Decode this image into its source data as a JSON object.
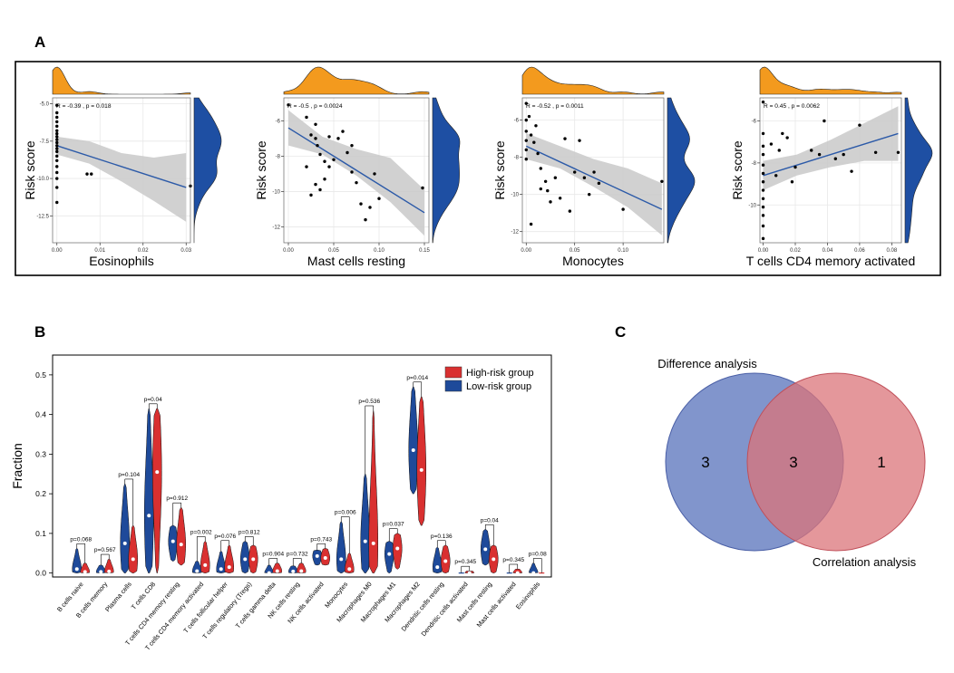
{
  "panels": {
    "A": {
      "label": "A"
    },
    "B": {
      "label": "B"
    },
    "C": {
      "label": "C"
    }
  },
  "colors": {
    "orange": "#F39A1E",
    "blue_density": "#1E4FA3",
    "fit_line": "#2C5AA8",
    "ci_band": "#C9C9C9",
    "high_risk": "#D93030",
    "low_risk": "#1E4A9A",
    "venn_left": "#6B83C3",
    "venn_right": "#DB7479",
    "venn_overlap": "#A64E6E"
  },
  "chart_data": [
    {
      "type": "scatter",
      "title": "",
      "xlabel": "Eosinophils",
      "ylabel": "Risk score",
      "annotation": "R = -0.39 , p = 0.018",
      "xlim": [
        -0.001,
        0.031
      ],
      "ylim": [
        -14.3,
        -4.6
      ],
      "xticks": [
        0.0,
        0.01,
        0.02,
        0.03
      ],
      "xtick_labels": [
        "0.00",
        "0.01",
        "0.02",
        "0.03"
      ],
      "yticks": [
        -5.0,
        -7.5,
        -10.0,
        -12.5
      ],
      "ytick_labels": [
        "-5.0",
        "-7.5",
        "-10.0",
        "-12.5"
      ],
      "fit": {
        "x": [
          0,
          0.03
        ],
        "y": [
          -7.8,
          -10.6
        ]
      },
      "ci": {
        "x": [
          0,
          0.0075,
          0.015,
          0.0225,
          0.03
        ],
        "lower": [
          -8.4,
          -9.0,
          -10.2,
          -11.5,
          -12.9
        ],
        "upper": [
          -7.2,
          -7.5,
          -8.3,
          -8.6,
          -8.3
        ]
      },
      "points": [
        [
          0,
          -5.1
        ],
        [
          0,
          -5.6
        ],
        [
          0,
          -5.9
        ],
        [
          0,
          -6.2
        ],
        [
          0,
          -6.5
        ],
        [
          0,
          -6.8
        ],
        [
          0,
          -7.0
        ],
        [
          0,
          -7.2
        ],
        [
          0,
          -7.4
        ],
        [
          0,
          -7.6
        ],
        [
          0,
          -7.8
        ],
        [
          0,
          -8.0
        ],
        [
          0,
          -8.2
        ],
        [
          0,
          -8.5
        ],
        [
          0,
          -8.8
        ],
        [
          0,
          -9.2
        ],
        [
          0,
          -9.6
        ],
        [
          0,
          -10.0
        ],
        [
          0,
          -10.6
        ],
        [
          0,
          -11.6
        ],
        [
          0.007,
          -9.7
        ],
        [
          0.008,
          -9.7
        ],
        [
          0.031,
          -10.5
        ]
      ]
    },
    {
      "type": "scatter",
      "title": "",
      "xlabel": "Mast cells resting",
      "ylabel": "Risk score",
      "annotation": "R = -0.5 , p = 0.0024",
      "xlim": [
        -0.005,
        0.155
      ],
      "ylim": [
        -12.9,
        -4.7
      ],
      "xticks": [
        0.0,
        0.05,
        0.1,
        0.15
      ],
      "xtick_labels": [
        "0.00",
        "0.05",
        "0.10",
        "0.15"
      ],
      "yticks": [
        -6,
        -8,
        -10,
        -12
      ],
      "ytick_labels": [
        "-6",
        "-8",
        "-10",
        "-12"
      ],
      "fit": {
        "x": [
          0,
          0.15
        ],
        "y": [
          -6.4,
          -11.2
        ]
      },
      "ci": {
        "x": [
          0,
          0.0375,
          0.075,
          0.1125,
          0.15
        ],
        "lower": [
          -7.4,
          -7.9,
          -9.1,
          -10.6,
          -12.5
        ],
        "upper": [
          -5.4,
          -6.9,
          -7.6,
          -8.1,
          -9.9
        ]
      },
      "points": [
        [
          0.0,
          -5.1
        ],
        [
          0.02,
          -5.8
        ],
        [
          0.025,
          -6.8
        ],
        [
          0.03,
          -6.2
        ],
        [
          0.03,
          -7.0
        ],
        [
          0.032,
          -7.4
        ],
        [
          0.035,
          -7.9
        ],
        [
          0.04,
          -8.3
        ],
        [
          0.045,
          -8.6
        ],
        [
          0.05,
          -8.2
        ],
        [
          0.055,
          -7.0
        ],
        [
          0.06,
          -6.6
        ],
        [
          0.065,
          -7.8
        ],
        [
          0.07,
          -8.9
        ],
        [
          0.075,
          -9.5
        ],
        [
          0.08,
          -10.7
        ],
        [
          0.085,
          -11.6
        ],
        [
          0.09,
          -10.9
        ],
        [
          0.095,
          -9.0
        ],
        [
          0.03,
          -9.6
        ],
        [
          0.025,
          -10.2
        ],
        [
          0.04,
          -9.3
        ],
        [
          0.02,
          -8.6
        ],
        [
          0.035,
          -9.9
        ],
        [
          0.045,
          -6.9
        ],
        [
          0.1,
          -10.4
        ],
        [
          0.148,
          -9.8
        ],
        [
          0.07,
          -7.4
        ]
      ]
    },
    {
      "type": "scatter",
      "title": "",
      "xlabel": "Monocytes",
      "ylabel": "Risk score",
      "annotation": "R = -0.52 , p = 0.0011",
      "xlim": [
        -0.004,
        0.142
      ],
      "ylim": [
        -12.6,
        -4.8
      ],
      "xticks": [
        0.0,
        0.05,
        0.1
      ],
      "xtick_labels": [
        "0.00",
        "0.05",
        "0.10"
      ],
      "yticks": [
        -6,
        -8,
        -10,
        -12
      ],
      "ytick_labels": [
        "-6",
        "-8",
        "-10",
        "-12"
      ],
      "fit": {
        "x": [
          0,
          0.14
        ],
        "y": [
          -7.4,
          -10.8
        ]
      },
      "ci": {
        "x": [
          0,
          0.035,
          0.07,
          0.105,
          0.14
        ],
        "lower": [
          -8.1,
          -8.6,
          -9.6,
          -10.7,
          -12.2
        ],
        "upper": [
          -6.7,
          -7.4,
          -8.1,
          -8.6,
          -9.4
        ]
      },
      "points": [
        [
          0,
          -5.1
        ],
        [
          0,
          -6.0
        ],
        [
          0,
          -6.6
        ],
        [
          0,
          -7.1
        ],
        [
          0,
          -7.6
        ],
        [
          0,
          -8.1
        ],
        [
          0.003,
          -5.8
        ],
        [
          0.005,
          -6.8
        ],
        [
          0.008,
          -7.2
        ],
        [
          0.01,
          -6.3
        ],
        [
          0.012,
          -7.8
        ],
        [
          0.015,
          -8.6
        ],
        [
          0.02,
          -9.3
        ],
        [
          0.022,
          -9.8
        ],
        [
          0.025,
          -10.4
        ],
        [
          0.03,
          -9.1
        ],
        [
          0.035,
          -10.2
        ],
        [
          0.04,
          -7.0
        ],
        [
          0.05,
          -8.8
        ],
        [
          0.055,
          -7.1
        ],
        [
          0.06,
          -9.1
        ],
        [
          0.065,
          -10.0
        ],
        [
          0.07,
          -8.8
        ],
        [
          0.075,
          -9.4
        ],
        [
          0.1,
          -10.8
        ],
        [
          0.14,
          -9.3
        ],
        [
          0.005,
          -11.6
        ],
        [
          0.015,
          -9.7
        ],
        [
          0.045,
          -10.9
        ]
      ]
    },
    {
      "type": "scatter",
      "title": "",
      "xlabel": "T cells CD4 memory activated",
      "ylabel": "Risk score",
      "annotation": "R = 0.45 , p = 0.0062",
      "xlim": [
        -0.002,
        0.086
      ],
      "ylim": [
        -11.8,
        -4.9
      ],
      "xticks": [
        0.0,
        0.02,
        0.04,
        0.06,
        0.08
      ],
      "xtick_labels": [
        "0.00",
        "0.02",
        "0.04",
        "0.06",
        "0.08"
      ],
      "yticks": [
        -6,
        -8,
        -10
      ],
      "ytick_labels": [
        "-6",
        "-8",
        "-10"
      ],
      "fit": {
        "x": [
          0,
          0.084
        ],
        "y": [
          -8.6,
          -6.6
        ]
      },
      "ci": {
        "x": [
          0,
          0.021,
          0.042,
          0.063,
          0.084
        ],
        "lower": [
          -9.3,
          -8.6,
          -8.2,
          -7.9,
          -7.9
        ],
        "upper": [
          -7.9,
          -7.6,
          -6.9,
          -6.1,
          -5.3
        ]
      },
      "points": [
        [
          0,
          -5.1
        ],
        [
          0,
          -6.6
        ],
        [
          0,
          -7.2
        ],
        [
          0,
          -7.6
        ],
        [
          0,
          -8.1
        ],
        [
          0,
          -8.5
        ],
        [
          0,
          -8.9
        ],
        [
          0,
          -9.3
        ],
        [
          0,
          -9.7
        ],
        [
          0,
          -10.1
        ],
        [
          0,
          -10.5
        ],
        [
          0,
          -11.0
        ],
        [
          0,
          -11.6
        ],
        [
          0.005,
          -7.1
        ],
        [
          0.008,
          -8.6
        ],
        [
          0.01,
          -7.4
        ],
        [
          0.012,
          -6.6
        ],
        [
          0.015,
          -6.8
        ],
        [
          0.018,
          -8.9
        ],
        [
          0.02,
          -8.2
        ],
        [
          0.03,
          -7.4
        ],
        [
          0.035,
          -7.6
        ],
        [
          0.038,
          -6.0
        ],
        [
          0.045,
          -7.8
        ],
        [
          0.05,
          -7.6
        ],
        [
          0.055,
          -8.4
        ],
        [
          0.06,
          -6.2
        ],
        [
          0.07,
          -7.5
        ],
        [
          0.084,
          -7.5
        ]
      ]
    },
    {
      "type": "violin",
      "title": "",
      "xlabel": "",
      "ylabel": "Fraction",
      "ylim": [
        -0.01,
        0.55
      ],
      "yticks": [
        0.0,
        0.1,
        0.2,
        0.3,
        0.4,
        0.5
      ],
      "ytick_labels": [
        "0.0",
        "0.1",
        "0.2",
        "0.3",
        "0.4",
        "0.5"
      ],
      "legend": {
        "position": "top-right",
        "entries": [
          "High-risk group",
          "Low-risk group"
        ]
      },
      "categories": [
        "B cells naive",
        "B cells memory",
        "Plasma cells",
        "T cells CD8",
        "T cells CD4 memory resting",
        "T cells CD4 memory activated",
        "T cells follicular helper",
        "T cells regulatory (Tregs)",
        "T cells gamma delta",
        "NK cells resting",
        "NK cells activated",
        "Monocytes",
        "Macrophages M0",
        "Macrophages M1",
        "Macrophages M2",
        "Dendritic cells resting",
        "Dendritic cells activated",
        "Mast cells resting",
        "Mast cells activated",
        "Eosinophils"
      ],
      "pvalues": [
        "p=0.068",
        "p=0.567",
        "p=0.104",
        "p=0.04",
        "p=0.912",
        "p=0.002",
        "p=0.076",
        "p=0.812",
        "p=0.904",
        "p=0.732",
        "p=0.743",
        "p=0.006",
        "p=0.536",
        "p=0.037",
        "p=0.014",
        "p=0.136",
        "p=0.345",
        "p=0.04",
        "p=0.345",
        "p=0.08"
      ],
      "series": [
        {
          "name": "Low-risk group",
          "min": [
            0.0,
            0.0,
            0.0,
            0.0,
            0.03,
            0.0,
            0.0,
            0.0,
            0.0,
            0.0,
            0.02,
            0.0,
            0.0,
            0.0,
            0.2,
            0.0,
            0.0,
            0.02,
            0.0,
            0.0
          ],
          "max": [
            0.062,
            0.02,
            0.225,
            0.415,
            0.12,
            0.03,
            0.055,
            0.08,
            0.02,
            0.018,
            0.058,
            0.13,
            0.25,
            0.08,
            0.47,
            0.065,
            0.0,
            0.11,
            0.0,
            0.025
          ],
          "median": [
            0.01,
            0.003,
            0.075,
            0.145,
            0.08,
            0.005,
            0.01,
            0.035,
            0.0,
            0.004,
            0.043,
            0.035,
            0.08,
            0.048,
            0.31,
            0.015,
            0.0,
            0.06,
            0.0,
            0.0
          ]
        },
        {
          "name": "High-risk group",
          "min": [
            0.0,
            0.0,
            0.0,
            0.0,
            0.02,
            0.0,
            0.0,
            0.0,
            0.0,
            0.0,
            0.02,
            0.0,
            0.0,
            0.01,
            0.12,
            0.0,
            0.0,
            0.0,
            0.0,
            0.0
          ],
          "max": [
            0.025,
            0.035,
            0.12,
            0.415,
            0.165,
            0.08,
            0.07,
            0.07,
            0.025,
            0.025,
            0.062,
            0.05,
            0.41,
            0.1,
            0.445,
            0.07,
            0.005,
            0.07,
            0.01,
            0.0
          ],
          "median": [
            0.003,
            0.004,
            0.035,
            0.255,
            0.072,
            0.02,
            0.015,
            0.035,
            0.005,
            0.005,
            0.038,
            0.01,
            0.075,
            0.062,
            0.26,
            0.03,
            0.0,
            0.035,
            0.0,
            0.0
          ]
        }
      ]
    },
    {
      "type": "venn",
      "title": "",
      "sets": [
        "Difference analysis",
        "Correlation analysis"
      ],
      "only_left": "3",
      "intersection": "3",
      "only_right": "1"
    }
  ]
}
